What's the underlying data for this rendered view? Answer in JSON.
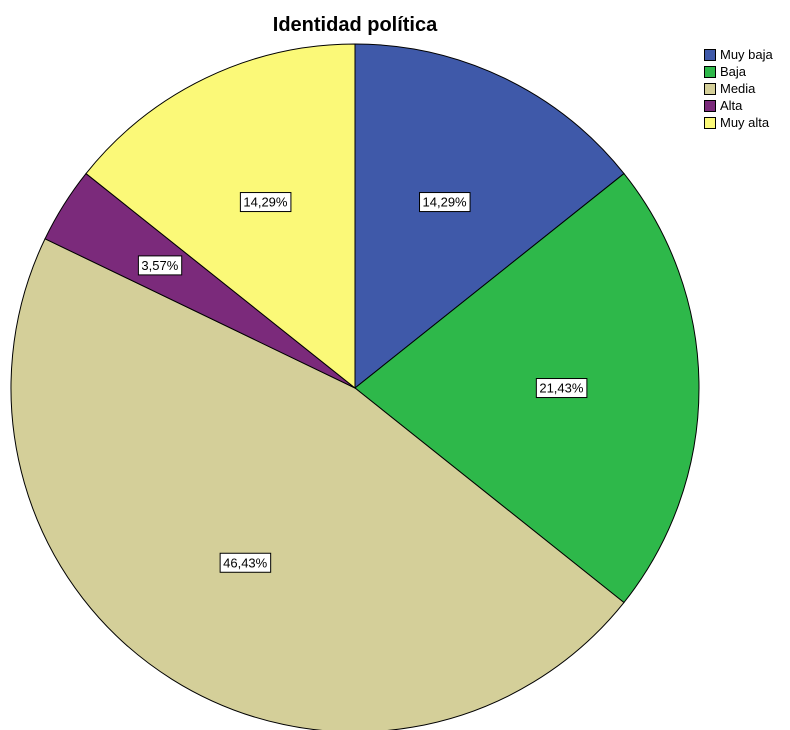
{
  "chart_data": {
    "type": "pie",
    "title": "Identidad política",
    "legend_position": "top-right",
    "start_angle_deg": 0,
    "direction": "clockwise",
    "slices": [
      {
        "label": "Muy baja",
        "value": 14.29,
        "value_label": "14,29%",
        "color": "#3f59a9"
      },
      {
        "label": "Baja",
        "value": 21.43,
        "value_label": "21,43%",
        "color": "#2eb84a"
      },
      {
        "label": "Media",
        "value": 46.43,
        "value_label": "46,43%",
        "color": "#d4cf99"
      },
      {
        "label": "Alta",
        "value": 3.57,
        "value_label": "3,57%",
        "color": "#7b2a7b"
      },
      {
        "label": "Muy alta",
        "value": 14.29,
        "value_label": "14,29%",
        "color": "#fbf978"
      }
    ]
  }
}
